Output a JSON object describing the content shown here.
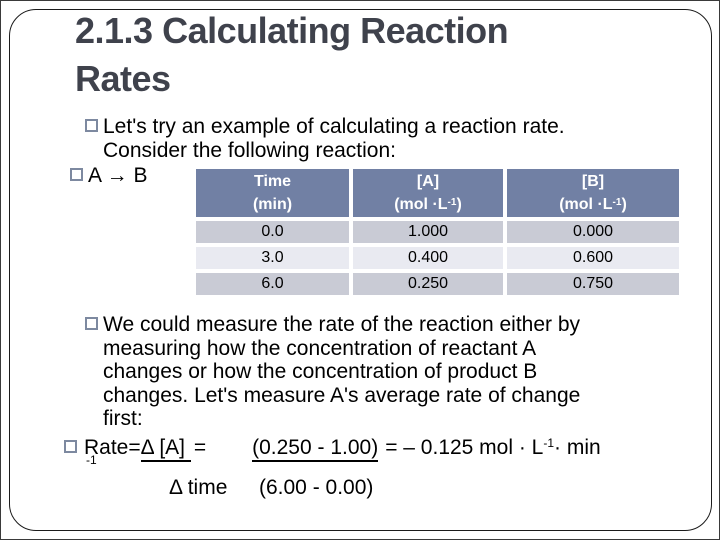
{
  "slide": {
    "title": "2.1.3 Calculating Reaction\nRates"
  },
  "bullets": {
    "intro": "Let's try an example of calculating a reaction rate.\nConsider the following reaction:",
    "reaction": "A → B",
    "measure": "We could measure the rate of the reaction either by\nmeasuring how the concentration of reactant A\nchanges or how the concentration of product B\nchanges. Let's measure A's average rate of change\nfirst:"
  },
  "table": {
    "headers": [
      {
        "line1": "Time",
        "unit_pre": "(min)",
        "unit_sup": "",
        "unit_post": ""
      },
      {
        "line1": "[A]",
        "unit_pre": "(mol ·L",
        "unit_sup": "-1",
        "unit_post": ")"
      },
      {
        "line1": "[B]",
        "unit_pre": "(mol ·L",
        "unit_sup": "-1",
        "unit_post": ")"
      }
    ],
    "rows": [
      [
        "0.0",
        "1.000",
        "0.000"
      ],
      [
        "3.0",
        "0.400",
        "0.600"
      ],
      [
        "6.0",
        "0.250",
        "0.750"
      ]
    ]
  },
  "equation": {
    "prefix": "Rate=",
    "numerator1": "Δ [A] ",
    "equals1": "=",
    "numerator2": "(0.250 - 1.00)",
    "result_pre": "= – 0.125 mol · L",
    "result_sup": "-1",
    "result_post": "· min",
    "wrapped_sup": "-1",
    "denominator1": "Δ time",
    "denominator2": "(6.00 - 0.00)"
  },
  "colors": {
    "title-color": "#3f424c",
    "header-bg": "#7180a4",
    "row-dark": "#c9cbd5",
    "row-light": "#e9eaf1",
    "bullet-border": "#7d89a0"
  }
}
